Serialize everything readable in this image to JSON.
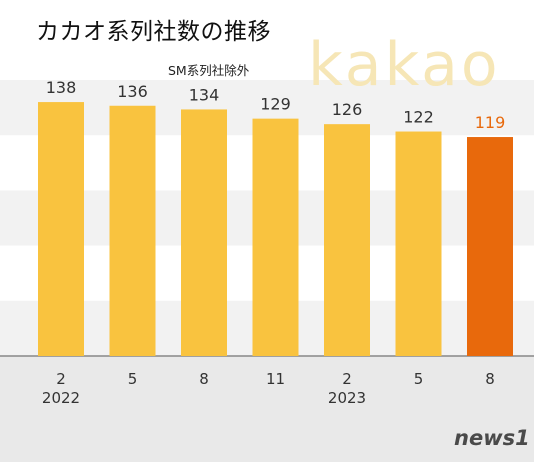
{
  "title": "カカオ系列社数の推移",
  "subtitle": "SM系列社除外",
  "watermark": "kakao",
  "brand": "news1",
  "colors": {
    "bar": "#F9C33F",
    "highlight": "#E8690C",
    "label": "#333333",
    "highlight_label": "#E8690C",
    "band": "#F2F2F2",
    "axis_area": "#E9E9E9"
  },
  "chart_data": {
    "type": "bar",
    "categories": [
      "2",
      "5",
      "8",
      "11",
      "2",
      "5",
      "8"
    ],
    "year_labels": [
      "2022",
      "",
      "",
      "",
      "2023",
      "",
      ""
    ],
    "values": [
      138,
      136,
      134,
      129,
      126,
      122,
      119
    ],
    "highlight_index": 6,
    "ylim": [
      0,
      150
    ],
    "grid": "alternating-bands",
    "title": "カカオ系列社数の推移",
    "subtitle": "SM系列社除外",
    "xlabel": "",
    "ylabel": ""
  }
}
